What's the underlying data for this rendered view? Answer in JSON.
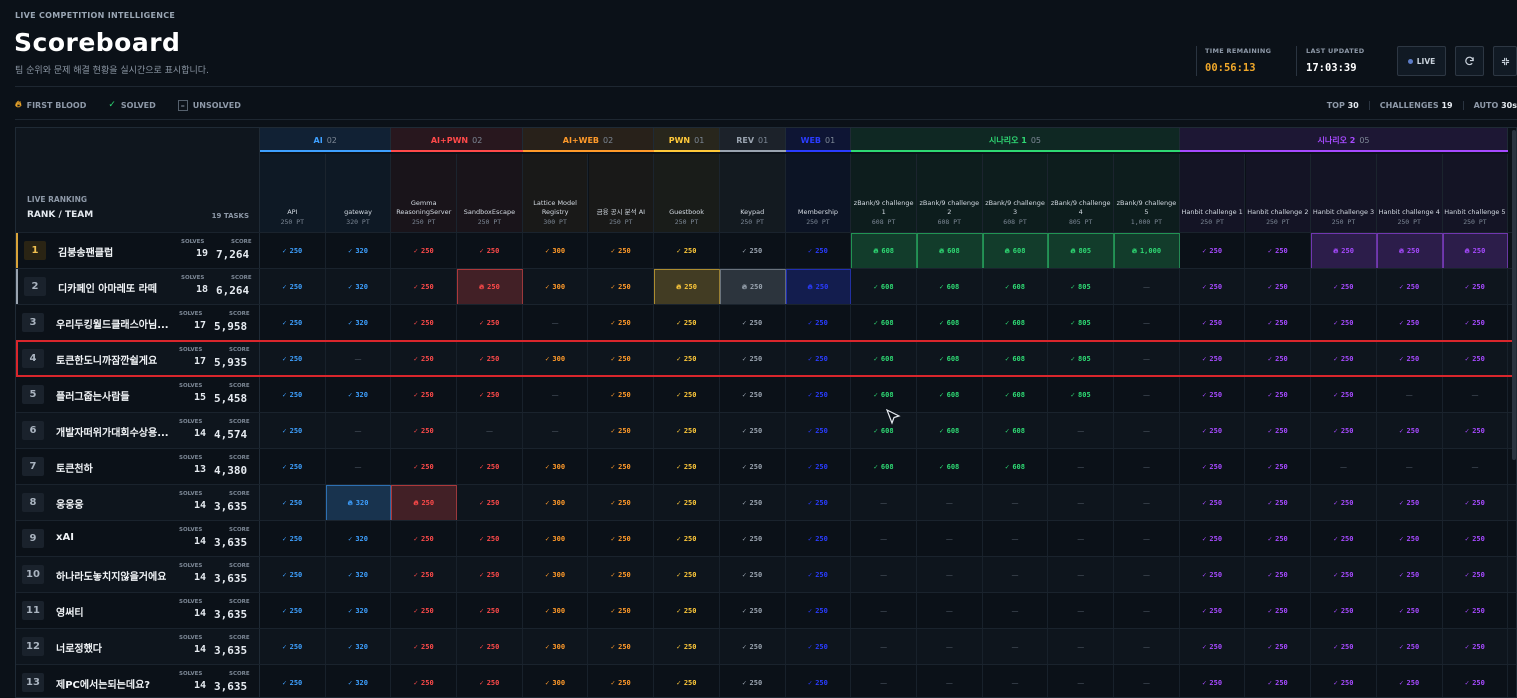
{
  "header": {
    "eyebrow": "LIVE COMPETITION INTELLIGENCE",
    "title": "Scoreboard",
    "subtitle": "팀 순위와 문제 해결 현황을 실시간으로 표시합니다.",
    "time_remaining_label": "TIME REMAINING",
    "time_remaining": "00:56:13",
    "last_updated_label": "LAST UPDATED",
    "last_updated": "17:03:39",
    "live_label": "LIVE",
    "icons": [
      "refresh-icon",
      "collapse-icon"
    ]
  },
  "legend": {
    "first_blood": "FIRST BLOOD",
    "solved": "SOLVED",
    "unsolved": "UNSOLVED",
    "top_label": "TOP",
    "top_value": "30",
    "challenges_label": "CHALLENGES",
    "challenges_value": "19",
    "auto_label": "AUTO",
    "auto_value": "30s"
  },
  "ranking_header": {
    "live_ranking": "LIVE RANKING",
    "rank_team": "RANK / TEAM",
    "tasks": "19 TASKS"
  },
  "categories": [
    {
      "name": "AI",
      "count": "02",
      "color": "#3ea0ff",
      "span": 2
    },
    {
      "name": "AI+PWN",
      "count": "02",
      "color": "#ff4a4a",
      "span": 2
    },
    {
      "name": "AI+WEB",
      "count": "02",
      "color": "#ff9a2a",
      "span": 2
    },
    {
      "name": "PWN",
      "count": "01",
      "color": "#ffc93a",
      "span": 1
    },
    {
      "name": "REV",
      "count": "01",
      "color": "#9aa4b0",
      "span": 1
    },
    {
      "name": "WEB",
      "count": "01",
      "color": "#2a3cff",
      "span": 1
    },
    {
      "name": "시나리오 1",
      "count": "05",
      "color": "#2ed873",
      "span": 5
    },
    {
      "name": "시나리오 2",
      "count": "05",
      "color": "#a64aff",
      "span": 5
    }
  ],
  "tasks": [
    {
      "name": "API",
      "points": "250 PT"
    },
    {
      "name": "gateway",
      "points": "320 PT"
    },
    {
      "name": "Gemma ReasoningServer",
      "points": "250 PT"
    },
    {
      "name": "SandboxEscape",
      "points": "250 PT"
    },
    {
      "name": "Lattice Model Registry",
      "points": "300 PT"
    },
    {
      "name": "금융 공시 분석 AI",
      "points": "250 PT"
    },
    {
      "name": "Guestbook",
      "points": "250 PT"
    },
    {
      "name": "Keypad",
      "points": "250 PT"
    },
    {
      "name": "Membership",
      "points": "250 PT"
    },
    {
      "name": "zBank/9 challenge 1",
      "points": "608 PT"
    },
    {
      "name": "zBank/9 challenge 2",
      "points": "608 PT"
    },
    {
      "name": "zBank/9 challenge 3",
      "points": "608 PT"
    },
    {
      "name": "zBank/9 challenge 4",
      "points": "805 PT"
    },
    {
      "name": "zBank/9 challenge 5",
      "points": "1,000 PT"
    },
    {
      "name": "Hanbit challenge 1",
      "points": "250 PT"
    },
    {
      "name": "Hanbit challenge 2",
      "points": "250 PT"
    },
    {
      "name": "Hanbit challenge 3",
      "points": "250 PT"
    },
    {
      "name": "Hanbit challenge 4",
      "points": "250 PT"
    },
    {
      "name": "Hanbit challenge 5",
      "points": "250 PT"
    }
  ],
  "team_labels": {
    "solves": "SOLVES",
    "score": "SCORE"
  },
  "teams": [
    {
      "rank": "1",
      "name": "김붕송팬클럽",
      "solves": "19",
      "score": "7,264",
      "cells": [
        "s250",
        "s320",
        "s250",
        "s250",
        "s300",
        "s250",
        "s250",
        "s250",
        "s250",
        "f608",
        "f608",
        "f608",
        "f805",
        "f1,000",
        "s250",
        "s250",
        "f250",
        "f250",
        "f250"
      ]
    },
    {
      "rank": "2",
      "name": "디카페인 아마레또 라떼",
      "solves": "18",
      "score": "6,264",
      "cells": [
        "s250",
        "s320",
        "s250",
        "f250",
        "s300",
        "s250",
        "f250",
        "f250",
        "f250",
        "s608",
        "s608",
        "s608",
        "s805",
        "-",
        "s250",
        "s250",
        "s250",
        "s250",
        "s250"
      ]
    },
    {
      "rank": "3",
      "name": "우리두킹월드클래스아님...",
      "solves": "17",
      "score": "5,958",
      "cells": [
        "s250",
        "s320",
        "s250",
        "s250",
        "-",
        "s250",
        "s250",
        "s250",
        "s250",
        "s608",
        "s608",
        "s608",
        "s805",
        "-",
        "s250",
        "s250",
        "s250",
        "s250",
        "s250"
      ]
    },
    {
      "rank": "4",
      "name": "토큰한도니까잠깐쉴게요",
      "solves": "17",
      "score": "5,935",
      "cells": [
        "s250",
        "-",
        "s250",
        "s250",
        "s300",
        "s250",
        "s250",
        "s250",
        "s250",
        "s608",
        "s608",
        "s608",
        "s805",
        "-",
        "s250",
        "s250",
        "s250",
        "s250",
        "s250"
      ]
    },
    {
      "rank": "5",
      "name": "플러그줍는사람들",
      "solves": "15",
      "score": "5,458",
      "cells": [
        "s250",
        "s320",
        "s250",
        "s250",
        "-",
        "s250",
        "s250",
        "s250",
        "s250",
        "s608",
        "s608",
        "s608",
        "s805",
        "-",
        "s250",
        "s250",
        "s250",
        "-",
        "-"
      ]
    },
    {
      "rank": "6",
      "name": "개발자떠위가대회수상용...",
      "solves": "14",
      "score": "4,574",
      "cells": [
        "s250",
        "-",
        "s250",
        "-",
        "-",
        "s250",
        "s250",
        "s250",
        "s250",
        "s608",
        "s608",
        "s608",
        "-",
        "-",
        "s250",
        "s250",
        "s250",
        "s250",
        "s250"
      ]
    },
    {
      "rank": "7",
      "name": "토큰천하",
      "solves": "13",
      "score": "4,380",
      "cells": [
        "s250",
        "-",
        "s250",
        "s250",
        "s300",
        "s250",
        "s250",
        "s250",
        "s250",
        "s608",
        "s608",
        "s608",
        "-",
        "-",
        "s250",
        "s250",
        "-",
        "-",
        "-"
      ]
    },
    {
      "rank": "8",
      "name": "웅웅웅",
      "solves": "14",
      "score": "3,635",
      "cells": [
        "s250",
        "f320",
        "f250",
        "s250",
        "s300",
        "s250",
        "s250",
        "s250",
        "s250",
        "-",
        "-",
        "-",
        "-",
        "-",
        "s250",
        "s250",
        "s250",
        "s250",
        "s250"
      ]
    },
    {
      "rank": "9",
      "name": "xAI",
      "solves": "14",
      "score": "3,635",
      "cells": [
        "s250",
        "s320",
        "s250",
        "s250",
        "s300",
        "s250",
        "s250",
        "s250",
        "s250",
        "-",
        "-",
        "-",
        "-",
        "-",
        "s250",
        "s250",
        "s250",
        "s250",
        "s250"
      ]
    },
    {
      "rank": "10",
      "name": "하나라도놓치지않을거에요",
      "solves": "14",
      "score": "3,635",
      "cells": [
        "s250",
        "s320",
        "s250",
        "s250",
        "s300",
        "s250",
        "s250",
        "s250",
        "s250",
        "-",
        "-",
        "-",
        "-",
        "-",
        "s250",
        "s250",
        "s250",
        "s250",
        "s250"
      ]
    },
    {
      "rank": "11",
      "name": "영써티",
      "solves": "14",
      "score": "3,635",
      "cells": [
        "s250",
        "s320",
        "s250",
        "s250",
        "s300",
        "s250",
        "s250",
        "s250",
        "s250",
        "-",
        "-",
        "-",
        "-",
        "-",
        "s250",
        "s250",
        "s250",
        "s250",
        "s250"
      ]
    },
    {
      "rank": "12",
      "name": "너로정했다",
      "solves": "14",
      "score": "3,635",
      "cells": [
        "s250",
        "s320",
        "s250",
        "s250",
        "s300",
        "s250",
        "s250",
        "s250",
        "s250",
        "-",
        "-",
        "-",
        "-",
        "-",
        "s250",
        "s250",
        "s250",
        "s250",
        "s250"
      ]
    },
    {
      "rank": "13",
      "name": "제PC에서는되는데요?",
      "solves": "14",
      "score": "3,635",
      "cells": [
        "s250",
        "s320",
        "s250",
        "s250",
        "s300",
        "s250",
        "s250",
        "s250",
        "s250",
        "-",
        "-",
        "-",
        "-",
        "-",
        "s250",
        "s250",
        "s250",
        "s250",
        "s250"
      ]
    }
  ]
}
